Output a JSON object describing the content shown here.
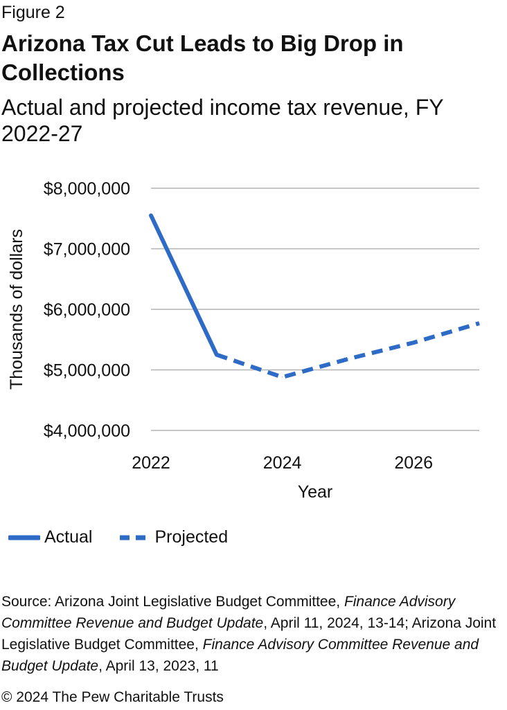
{
  "figure_label": "Figure 2",
  "title": "Arizona Tax Cut Leads to Big Drop in Collections",
  "subtitle": "Actual and projected income tax revenue, FY 2022-27",
  "source": {
    "prefix": "Source: Arizona Joint Legislative Budget Committee, ",
    "title1": "Finance Advisory Committee Revenue and Budget Update",
    "middle": ", April 11, 2024, 13-14; Arizona Joint Legislative Budget Committee, ",
    "title2": "Finance Advisory Committee Revenue and Budget Update",
    "suffix": ", April 13, 2023, 11"
  },
  "copyright": "© 2024 The Pew Charitable Trusts",
  "colors": {
    "series": "#2e6bc6",
    "grid": "#b3b3b3",
    "text": "#111111"
  },
  "chart_data": {
    "type": "line",
    "title": "Arizona Tax Cut Leads to Big Drop in Collections",
    "xlabel": "Year",
    "ylabel": "Thousands of dollars",
    "xlim": [
      2022,
      2027
    ],
    "ylim": [
      4000000,
      8000000
    ],
    "x_ticks": [
      2022,
      2024,
      2026
    ],
    "x_tick_labels": [
      "2022",
      "2024",
      "2026"
    ],
    "y_ticks": [
      4000000,
      5000000,
      6000000,
      7000000,
      8000000
    ],
    "y_tick_labels": [
      "$4,000,000",
      "$5,000,000",
      "$6,000,000",
      "$7,000,000",
      "$8,000,000"
    ],
    "grid": true,
    "legend_position": "bottom-left",
    "series": [
      {
        "name": "Actual",
        "style": "solid",
        "x": [
          2022,
          2023
        ],
        "values": [
          7550000,
          5250000
        ]
      },
      {
        "name": "Projected",
        "style": "dashed",
        "x": [
          2023,
          2024,
          2025,
          2026,
          2027
        ],
        "values": [
          5250000,
          4880000,
          5180000,
          5450000,
          5770000
        ]
      }
    ]
  }
}
